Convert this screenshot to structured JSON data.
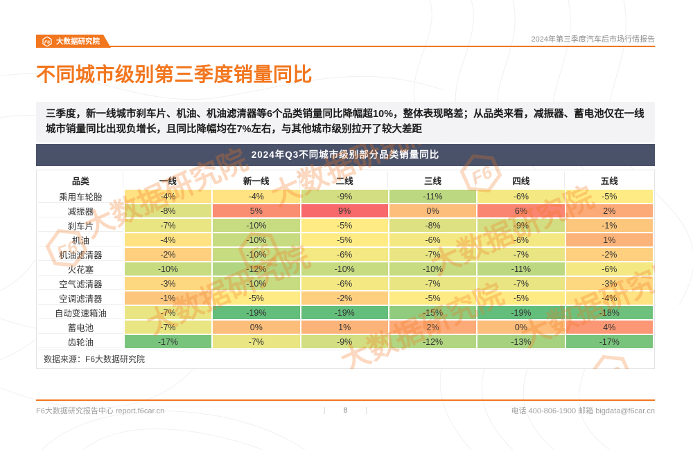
{
  "header": {
    "logo_mark": "F6",
    "brand_name": "大数据研究院",
    "report_title": "2024年第三季度汽车后市场行情报告"
  },
  "page_title": "不同城市级别第三季度销量同比",
  "summary": "三季度，新一线城市刹车片、机油、机油滤清器等6个品类销量同比降幅超10%，整体表现略差；从品类来看，减振器、蓄电池仅在一线城市销量同比出现负增长，且同比降幅均在7%左右，与其他城市级别拉开了较大差距",
  "chart_data": {
    "type": "heatmap",
    "title": "2024年Q3不同城市级别部分品类销量同比",
    "unit": "%",
    "columns": [
      "品类",
      "一线",
      "新一线",
      "二线",
      "三线",
      "四线",
      "五线"
    ],
    "rows": [
      {
        "label": "乘用车轮胎",
        "values": [
          -4,
          -4,
          -9,
          -11,
          -6,
          -5
        ]
      },
      {
        "label": "减振器",
        "values": [
          -8,
          5,
          9,
          0,
          6,
          2
        ]
      },
      {
        "label": "刹车片",
        "values": [
          -7,
          -10,
          -5,
          -8,
          -9,
          -1
        ]
      },
      {
        "label": "机油",
        "values": [
          -4,
          -10,
          -5,
          -6,
          -6,
          1
        ]
      },
      {
        "label": "机油滤清器",
        "values": [
          -2,
          -10,
          -6,
          -7,
          -7,
          -2
        ]
      },
      {
        "label": "火花塞",
        "values": [
          -10,
          -12,
          -10,
          -10,
          -11,
          -6
        ]
      },
      {
        "label": "空气滤清器",
        "values": [
          -3,
          -10,
          -6,
          -7,
          -7,
          -3
        ]
      },
      {
        "label": "空调滤清器",
        "values": [
          -1,
          -5,
          -2,
          -5,
          -5,
          -4
        ]
      },
      {
        "label": "自动变速箱油",
        "values": [
          -7,
          -19,
          -19,
          -15,
          -19,
          -18
        ]
      },
      {
        "label": "蓄电池",
        "values": [
          -7,
          0,
          1,
          2,
          0,
          4
        ]
      },
      {
        "label": "齿轮油",
        "values": [
          -17,
          -7,
          -9,
          -12,
          -13,
          -17
        ]
      }
    ],
    "colorscale": {
      "min_value": -19,
      "mid_value": -5,
      "max_value": 9,
      "min_color": "#63BE7B",
      "mid_color": "#FFEB84",
      "max_color": "#F8696B"
    },
    "source": "数据来源：F6大数据研究院"
  },
  "watermark": {
    "text": "大数据研究院"
  },
  "footer": {
    "left": "F6大数据研究报告中心 report.f6car.cn",
    "page_number": "8",
    "right": "电话 400-806-1900 邮箱 bigdata@f6car.cn"
  },
  "colors": {
    "brand_orange": "#F2761E",
    "table_title_bg": "#4A5269",
    "summary_bg": "#F3F3F5",
    "text_dark": "#262626",
    "text_gray": "#9B9B9B"
  }
}
